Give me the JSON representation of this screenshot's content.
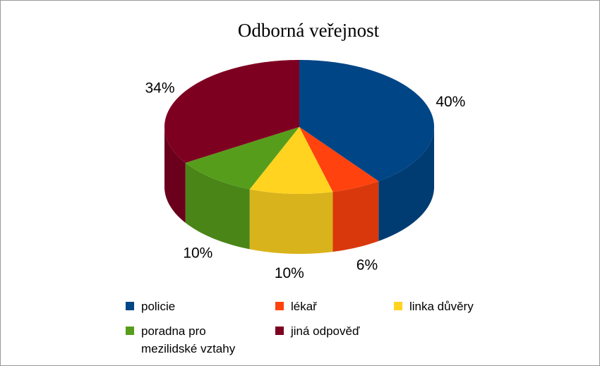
{
  "chart_data": {
    "type": "pie3d",
    "title": "Odborná veřejnost",
    "categories": [
      "policie",
      "lékař",
      "linka důvěry",
      "poradna pro mezilidské vztahy",
      "jiná odpověď"
    ],
    "values": [
      40,
      6,
      10,
      10,
      34
    ],
    "value_labels": [
      "40%",
      "6%",
      "10%",
      "10%",
      "34%"
    ],
    "colors": [
      "#004586",
      "#ff420e",
      "#ffd320",
      "#579d1c",
      "#7e0021"
    ],
    "legend": "bottom"
  }
}
